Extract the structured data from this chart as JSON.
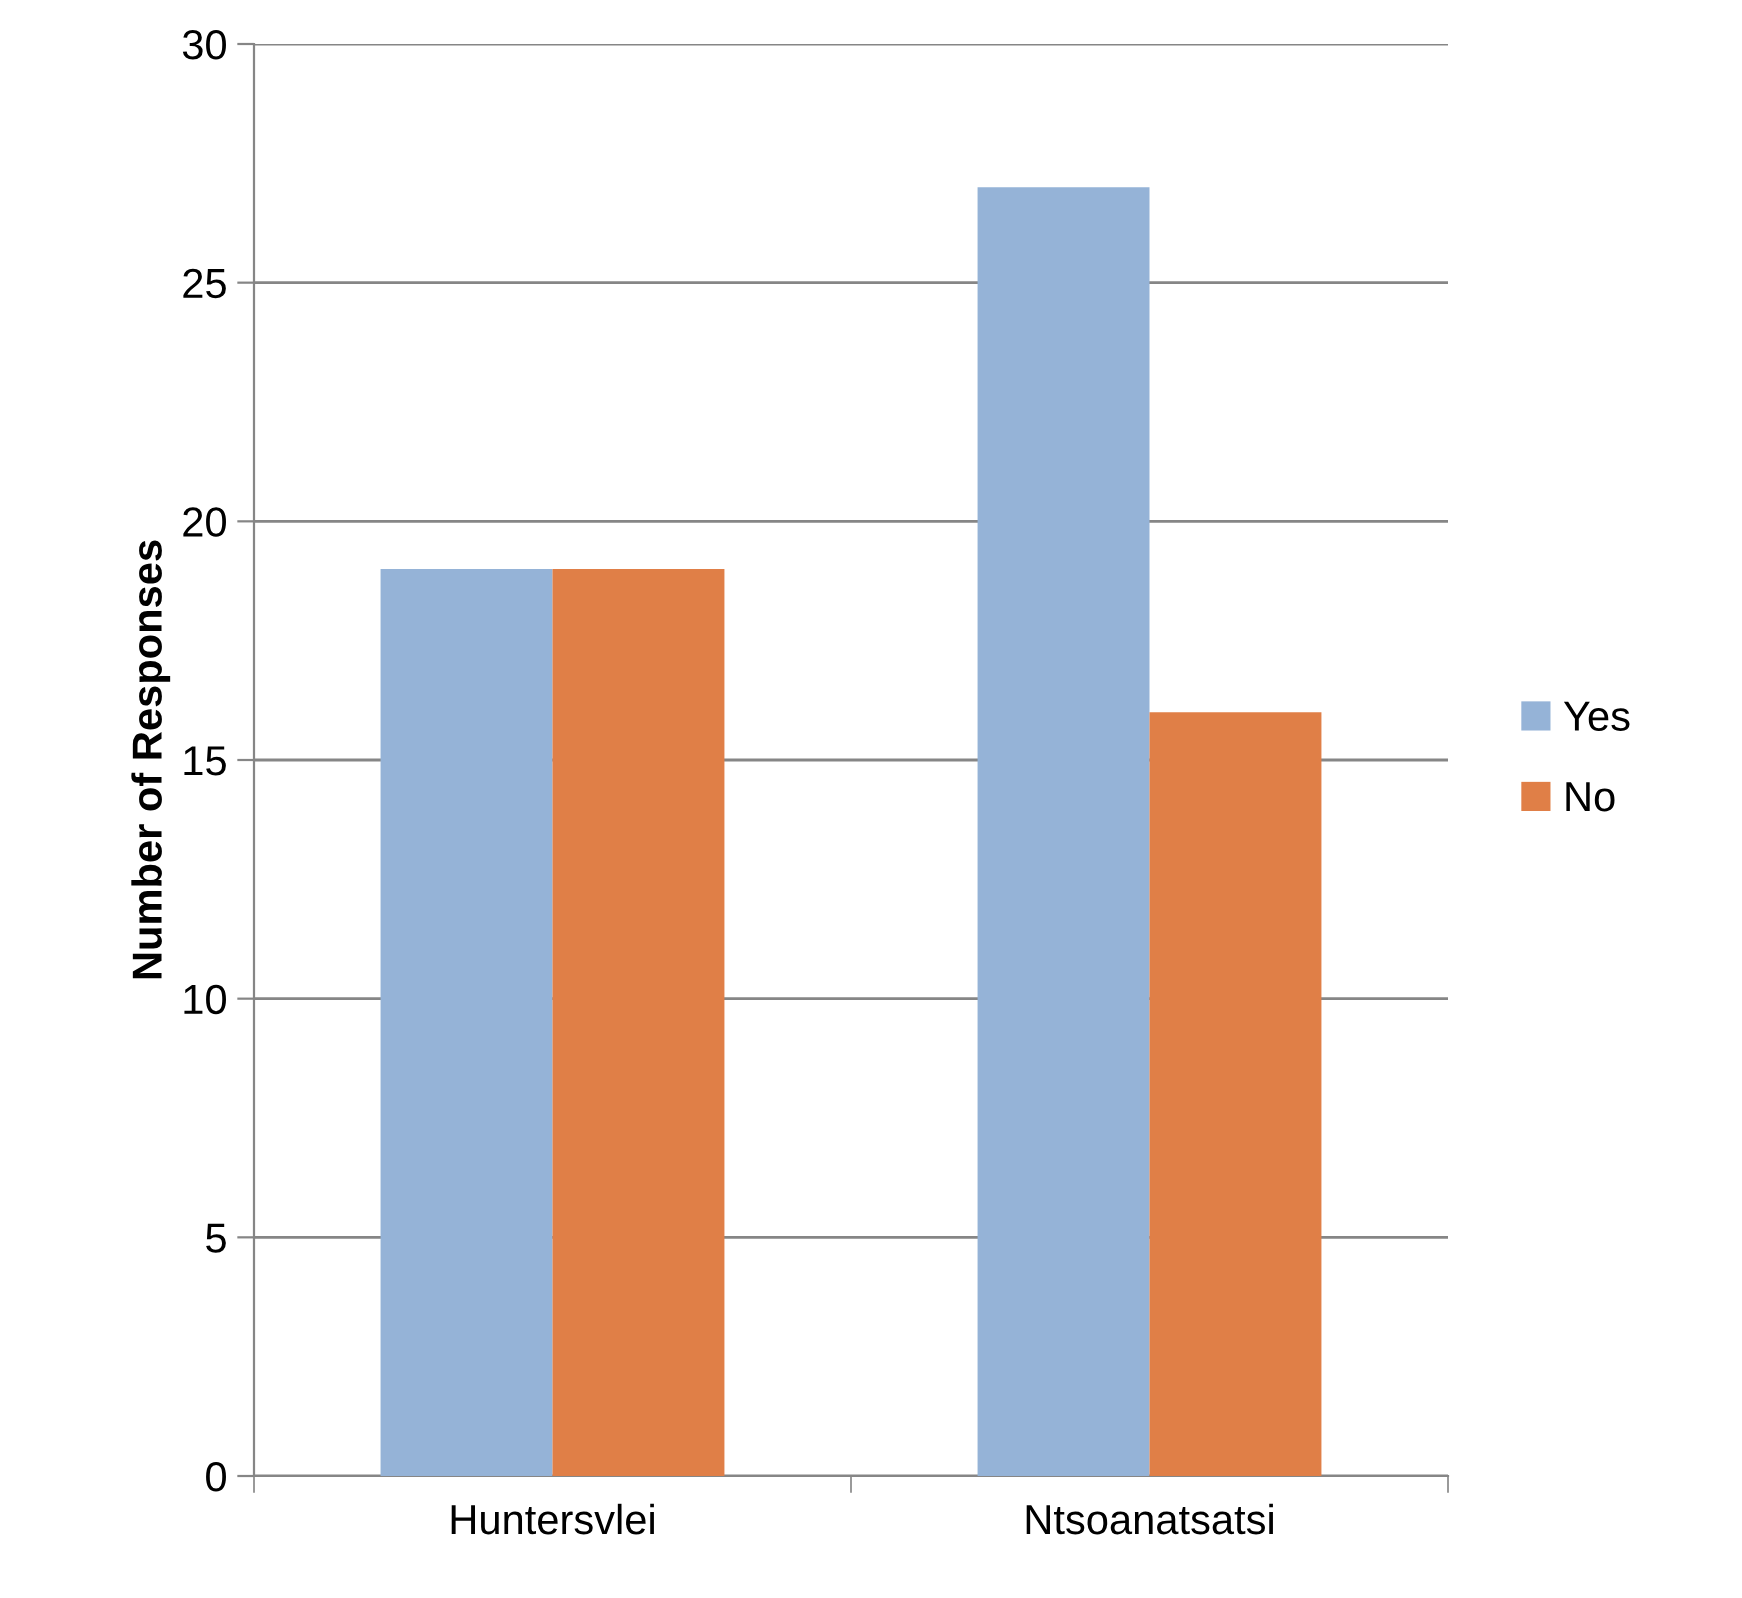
{
  "chart_data": {
    "type": "bar",
    "ylabel": "Number of Responses",
    "categories": [
      "Huntersvlei",
      "Ntsoanatsatsi"
    ],
    "series": [
      {
        "name": "Yes",
        "color": "#95b3d7",
        "values": [
          19,
          27
        ]
      },
      {
        "name": "No",
        "color": "#e07f47",
        "values": [
          19,
          16
        ]
      }
    ],
    "ylim": [
      0,
      30
    ],
    "yticks": [
      0,
      5,
      10,
      15,
      20,
      25,
      30
    ],
    "grid": "y",
    "legend": "right"
  }
}
